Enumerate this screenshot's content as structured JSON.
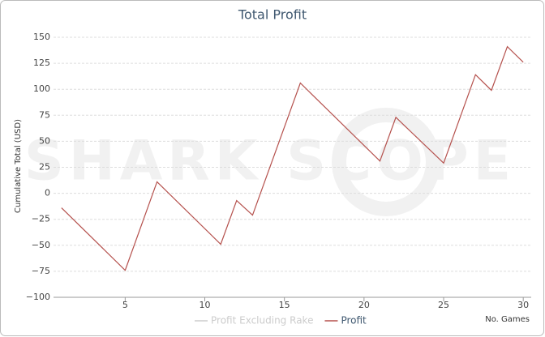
{
  "chart_data": {
    "type": "line",
    "title": "Total Profit",
    "watermark": "SHARK SCOPE",
    "x_label": "No. Games",
    "y_label": "Cumulative Total (USD)",
    "x": [
      1,
      5,
      7,
      11,
      12,
      13,
      16,
      21,
      22,
      25,
      27,
      28,
      29,
      30
    ],
    "series": [
      {
        "name": "Profit Excluding Rake",
        "color": "#cccccc",
        "hidden": true,
        "values": [
          null,
          null,
          null,
          null,
          null,
          null,
          null,
          null,
          null,
          null,
          null,
          null,
          null,
          null
        ]
      },
      {
        "name": "Profit",
        "color": "#b5514d",
        "values": [
          -14,
          -74,
          11,
          -49,
          -7,
          -21,
          106,
          31,
          73,
          29,
          114,
          99,
          141,
          126
        ]
      }
    ],
    "xlim": [
      0.5,
      30.5
    ],
    "xticks": [
      5,
      10,
      15,
      20,
      25,
      30
    ],
    "ylim": [
      -100,
      150
    ],
    "yticks": [
      {
        "value": -100,
        "label": "−100"
      },
      {
        "value": -75,
        "label": "−75"
      },
      {
        "value": -50,
        "label": "−50"
      },
      {
        "value": -25,
        "label": "−25"
      },
      0,
      25,
      50,
      75,
      100,
      125,
      150
    ],
    "grid": true
  }
}
